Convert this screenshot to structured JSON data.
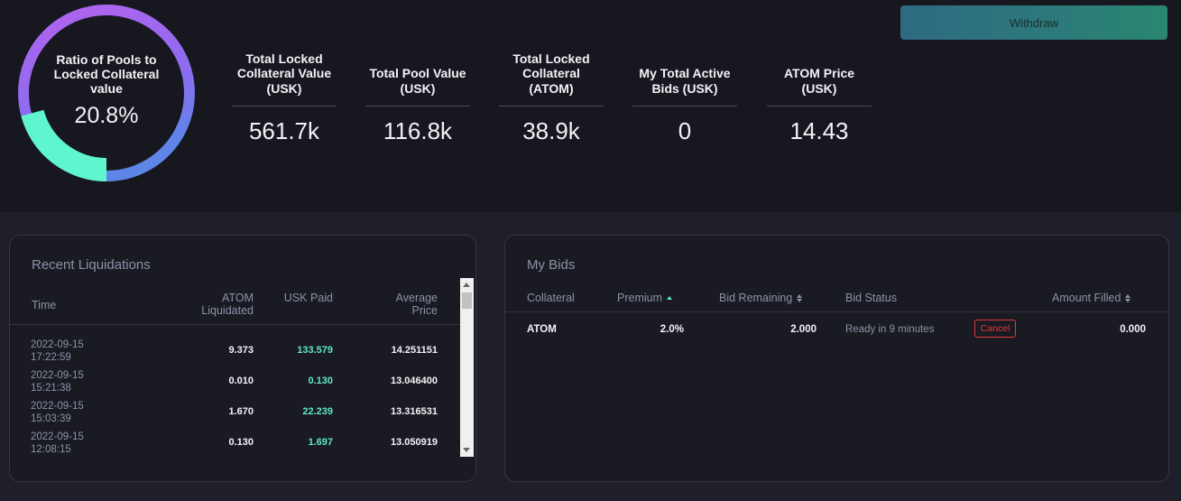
{
  "header": {
    "ratio_title": "Ratio of Pools to Locked Collateral value",
    "ratio_value": "20.8%",
    "ratio_fraction": 0.208,
    "stats": [
      {
        "label": "Total Locked Collateral Value (USK)",
        "value": "561.7k"
      },
      {
        "label": "Total Pool Value (USK)",
        "value": "116.8k"
      },
      {
        "label": "Total Locked Collateral (ATOM)",
        "value": "38.9k"
      },
      {
        "label": "My Total Active Bids (USK)",
        "value": "0"
      },
      {
        "label": "ATOM Price (USK)",
        "value": "14.43"
      }
    ],
    "withdraw_label": "Withdraw"
  },
  "recent_liquidations": {
    "title": "Recent Liquidations",
    "columns": [
      "Time",
      "ATOM Liquidated",
      "USK Paid",
      "Average Price"
    ],
    "rows": [
      {
        "date": "2022-09-15",
        "time": "17:22:59",
        "atom": "9.373",
        "usk": "133.579",
        "price": "14.251151"
      },
      {
        "date": "2022-09-15",
        "time": "15:21:38",
        "atom": "0.010",
        "usk": "0.130",
        "price": "13.046400"
      },
      {
        "date": "2022-09-15",
        "time": "15:03:39",
        "atom": "1.670",
        "usk": "22.239",
        "price": "13.316531"
      },
      {
        "date": "2022-09-15",
        "time": "12:08:15",
        "atom": "0.130",
        "usk": "1.697",
        "price": "13.050919"
      },
      {
        "date": "2022-09-15",
        "time": "",
        "atom": "",
        "usk": "",
        "price": ""
      }
    ]
  },
  "my_bids": {
    "title": "My Bids",
    "columns": [
      "Collateral",
      "Premium",
      "Bid Remaining",
      "Bid Status",
      "Amount Filled"
    ],
    "rows": [
      {
        "collateral": "ATOM",
        "premium": "2.0%",
        "remaining": "2.000",
        "status": "Ready in 9 minutes",
        "action": "Cancel",
        "filled": "0.000"
      }
    ]
  },
  "colors": {
    "ring_track_start": "#a66ef0",
    "ring_track_end": "#6a78ee",
    "ring_fill": "#5ff5cf",
    "accent_teal": "#5fe8c3",
    "cancel_red": "#e33b3b"
  }
}
